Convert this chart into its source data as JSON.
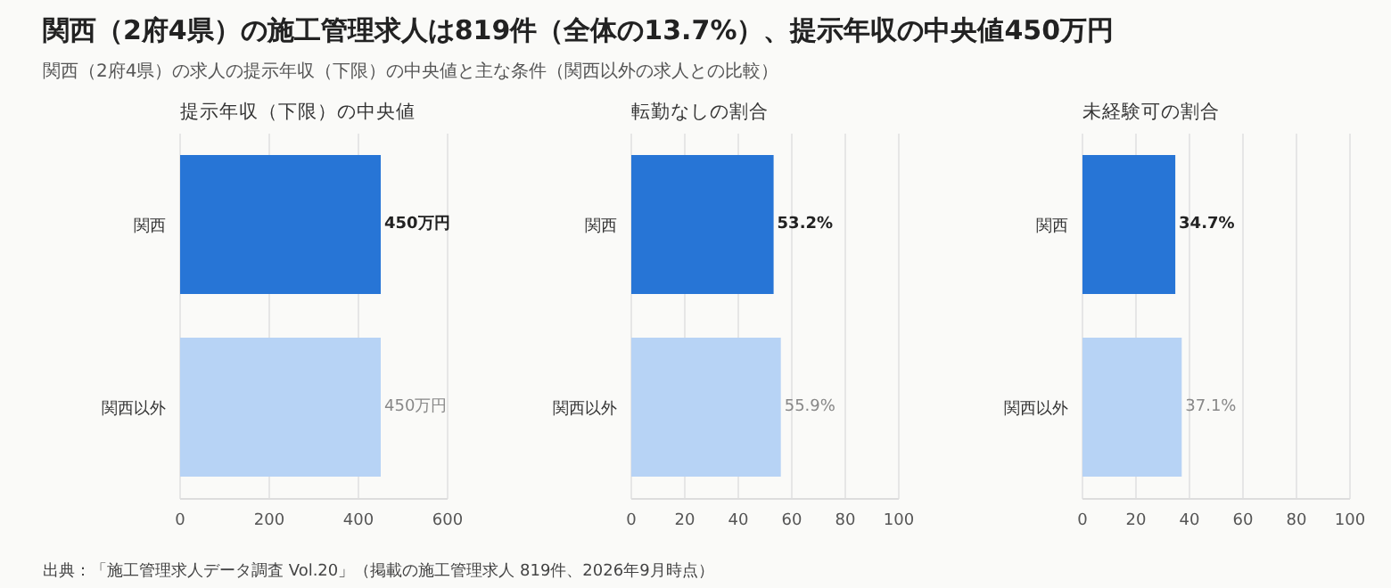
{
  "chart_data": [
    {
      "type": "other",
      "title": "関西（2府4県）の施工管理求人は819件（全体の13.7%）、提示年収の中央値450万円",
      "subtitle": "関西（2府4県）の求人の提示年収（下限）の中央値と主な条件（関西以外の求人との比較）",
      "annotations": [
        "出典：「施工管理求人データ調査 Vol.20」（掲載の施工管理求人 819件、2026年9月時点）"
      ]
    },
    {
      "type": "bar",
      "orientation": "horizontal",
      "title": "提示年収（下限）の中央値",
      "categories": [
        "関西",
        "関西以外"
      ],
      "values": [
        450,
        450
      ],
      "colors": [
        "#2775d6",
        "#b7d3f5"
      ],
      "value_labels": [
        "450万円",
        "450万円"
      ],
      "xlim": [
        0,
        600
      ],
      "xticks": [
        0,
        200,
        400,
        600
      ],
      "grid": "x"
    },
    {
      "type": "bar",
      "orientation": "horizontal",
      "title": "転勤なしの割合",
      "categories": [
        "関西",
        "関西以外"
      ],
      "values": [
        53.2,
        55.9
      ],
      "colors": [
        "#2775d6",
        "#b7d3f5"
      ],
      "value_labels": [
        "53.2%",
        "55.9%"
      ],
      "xlim": [
        0,
        100
      ],
      "xticks": [
        0,
        20,
        40,
        60,
        80,
        100
      ],
      "grid": "x"
    },
    {
      "type": "bar",
      "orientation": "horizontal",
      "title": "未経験可の割合",
      "categories": [
        "関西",
        "関西以外"
      ],
      "values": [
        34.7,
        37.1
      ],
      "colors": [
        "#2775d6",
        "#b7d3f5"
      ],
      "value_labels": [
        "34.7%",
        "37.1%"
      ],
      "xlim": [
        0,
        100
      ],
      "xticks": [
        0,
        20,
        40,
        60,
        80,
        100
      ],
      "grid": "x"
    }
  ]
}
